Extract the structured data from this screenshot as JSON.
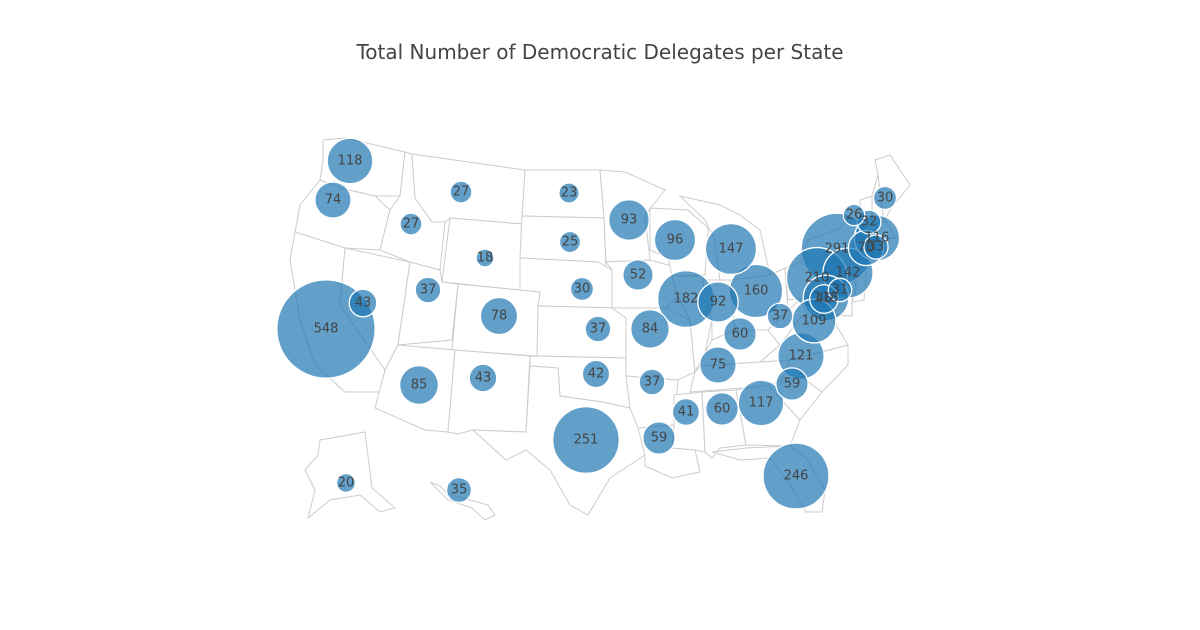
{
  "title": "Total Number of Democratic Delegates per State",
  "colors": {
    "bubble": "#1f77b4",
    "bubble_opacity": 0.7,
    "border": "#cccccc",
    "label": "#444444"
  },
  "chart_data": {
    "type": "scatter",
    "subtype": "bubble-map",
    "projection": "albers-usa",
    "title": "Total Number of Democratic Delegates per State",
    "points": [
      {
        "state": "WA",
        "value": 118
      },
      {
        "state": "OR",
        "value": 74
      },
      {
        "state": "CA",
        "value": 548
      },
      {
        "state": "NV",
        "value": 43
      },
      {
        "state": "ID",
        "value": 27
      },
      {
        "state": "MT",
        "value": 27
      },
      {
        "state": "WY",
        "value": 18
      },
      {
        "state": "UT",
        "value": 37
      },
      {
        "state": "CO",
        "value": 78
      },
      {
        "state": "AZ",
        "value": 85
      },
      {
        "state": "NM",
        "value": 43
      },
      {
        "state": "ND",
        "value": 23
      },
      {
        "state": "SD",
        "value": 25
      },
      {
        "state": "NE",
        "value": 30
      },
      {
        "state": "KS",
        "value": 37
      },
      {
        "state": "OK",
        "value": 42
      },
      {
        "state": "TX",
        "value": 251
      },
      {
        "state": "MN",
        "value": 93
      },
      {
        "state": "IA",
        "value": 52
      },
      {
        "state": "MO",
        "value": 84
      },
      {
        "state": "AR",
        "value": 37
      },
      {
        "state": "LA",
        "value": 59
      },
      {
        "state": "WI",
        "value": 96
      },
      {
        "state": "IL",
        "value": 182
      },
      {
        "state": "MI",
        "value": 147
      },
      {
        "state": "IN",
        "value": 92
      },
      {
        "state": "OH",
        "value": 160
      },
      {
        "state": "KY",
        "value": 60
      },
      {
        "state": "TN",
        "value": 75
      },
      {
        "state": "MS",
        "value": 41
      },
      {
        "state": "AL",
        "value": 60
      },
      {
        "state": "GA",
        "value": 117
      },
      {
        "state": "FL",
        "value": 246
      },
      {
        "state": "SC",
        "value": 59
      },
      {
        "state": "NC",
        "value": 121
      },
      {
        "state": "VA",
        "value": 109
      },
      {
        "state": "WV",
        "value": 37
      },
      {
        "state": "PA",
        "value": 210
      },
      {
        "state": "NY",
        "value": 291
      },
      {
        "state": "NJ",
        "value": 142
      },
      {
        "state": "MD",
        "value": 118
      },
      {
        "state": "DE",
        "value": 31
      },
      {
        "state": "DC",
        "value": 46
      },
      {
        "state": "CT",
        "value": 70
      },
      {
        "state": "RI",
        "value": 33
      },
      {
        "state": "MA",
        "value": 116
      },
      {
        "state": "VT",
        "value": 26
      },
      {
        "state": "NH",
        "value": 32
      },
      {
        "state": "ME",
        "value": 30
      },
      {
        "state": "AK",
        "value": 20
      },
      {
        "state": "HI",
        "value": 35
      }
    ]
  }
}
